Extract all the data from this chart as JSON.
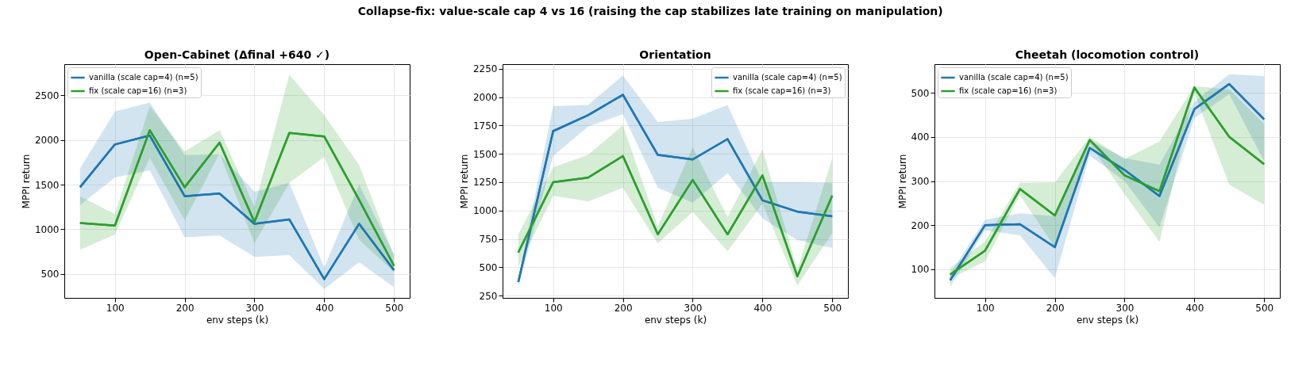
{
  "chart_data": [
    {
      "type": "line",
      "title": "Open-Cabinet (Δfinal +640 ✓)",
      "annotations": [
        "Collapse-fix: value-scale cap 4 vs 16 (raising the cap stabilizes late training on manipulation)"
      ],
      "xlabel": "env steps (k)",
      "ylabel": "MPPI return",
      "x": [
        50,
        100,
        150,
        200,
        250,
        300,
        350,
        400,
        450,
        500
      ],
      "xlim": [
        27.5,
        522.5
      ],
      "xticks": [
        100,
        200,
        300,
        400,
        500
      ],
      "ylim": [
        230,
        2850
      ],
      "yticks": [
        500,
        1000,
        1500,
        2000,
        2500
      ],
      "grid": true,
      "legend": "top left",
      "line_style": "solid",
      "series": [
        {
          "name": "vanilla (scale cap=4) (n=5)",
          "color": "#1f77b4",
          "values": [
            1470,
            1950,
            2050,
            1370,
            1400,
            1060,
            1110,
            440,
            1060,
            540
          ],
          "lower": [
            1270,
            1580,
            1660,
            910,
            930,
            690,
            710,
            330,
            630,
            350
          ],
          "upper": [
            1680,
            2320,
            2420,
            1830,
            1840,
            1420,
            1520,
            570,
            1500,
            720
          ]
        },
        {
          "name": "fix (scale cap=16) (n=3)",
          "color": "#2ca02c",
          "values": [
            1070,
            1040,
            2110,
            1470,
            1970,
            1080,
            2080,
            2040,
            1330,
            590
          ],
          "lower": [
            770,
            940,
            1800,
            1100,
            1850,
            840,
            1520,
            1810,
            880,
            520
          ],
          "upper": [
            1370,
            1170,
            2380,
            1870,
            2110,
            1250,
            2730,
            2280,
            1720,
            700
          ]
        }
      ]
    },
    {
      "type": "line",
      "title": "Orientation",
      "xlabel": "env steps (k)",
      "ylabel": "MPPI return",
      "x": [
        50,
        100,
        150,
        200,
        250,
        300,
        350,
        400,
        450,
        500
      ],
      "xlim": [
        27.5,
        522.5
      ],
      "xticks": [
        100,
        200,
        300,
        400,
        500
      ],
      "ylim": [
        230,
        2290
      ],
      "yticks": [
        250,
        500,
        750,
        1000,
        1250,
        1500,
        1750,
        2000,
        2250
      ],
      "grid": true,
      "legend": "top right",
      "line_style": "solid",
      "series": [
        {
          "name": "vanilla (scale cap=4) (n=5)",
          "color": "#1f77b4",
          "values": [
            370,
            1700,
            1840,
            2020,
            1490,
            1450,
            1630,
            1090,
            990,
            950
          ],
          "lower": [
            320,
            1480,
            1740,
            1850,
            1200,
            1070,
            1330,
            930,
            740,
            670
          ],
          "upper": [
            400,
            1920,
            1930,
            2190,
            1780,
            1810,
            1930,
            1250,
            1250,
            1240
          ]
        },
        {
          "name": "fix (scale cap=16) (n=3)",
          "color": "#2ca02c",
          "values": [
            630,
            1250,
            1290,
            1480,
            790,
            1270,
            790,
            1310,
            420,
            1130
          ],
          "lower": [
            500,
            1130,
            1080,
            1200,
            710,
            990,
            640,
            1060,
            340,
            800
          ],
          "upper": [
            790,
            1380,
            1490,
            1750,
            860,
            1560,
            940,
            1540,
            480,
            1460
          ]
        }
      ]
    },
    {
      "type": "line",
      "title": "Cheetah (locomotion control)",
      "xlabel": "env steps (k)",
      "ylabel": "MPPI return",
      "x": [
        50,
        100,
        150,
        200,
        250,
        300,
        350,
        400,
        450,
        500
      ],
      "xlim": [
        27.5,
        522.5
      ],
      "xticks": [
        100,
        200,
        300,
        400,
        500
      ],
      "ylim": [
        35,
        565
      ],
      "yticks": [
        100,
        200,
        300,
        400,
        500
      ],
      "grid": true,
      "legend": "top left",
      "line_style": "solid",
      "series": [
        {
          "name": "vanilla (scale cap=4) (n=5)",
          "color": "#1f77b4",
          "values": [
            75,
            200,
            202,
            150,
            375,
            325,
            266,
            463,
            520,
            440
          ],
          "lower": [
            60,
            188,
            177,
            80,
            358,
            300,
            195,
            443,
            497,
            345
          ],
          "upper": [
            90,
            212,
            227,
            220,
            392,
            352,
            337,
            480,
            542,
            538
          ]
        },
        {
          "name": "fix (scale cap=16) (n=3)",
          "color": "#2ca02c",
          "values": [
            88,
            142,
            282,
            222,
            393,
            313,
            277,
            512,
            400,
            338
          ],
          "lower": [
            78,
            118,
            268,
            150,
            385,
            270,
            162,
            500,
            292,
            246
          ],
          "upper": [
            103,
            163,
            296,
            297,
            400,
            350,
            390,
            515,
            508,
            430
          ]
        }
      ]
    }
  ]
}
